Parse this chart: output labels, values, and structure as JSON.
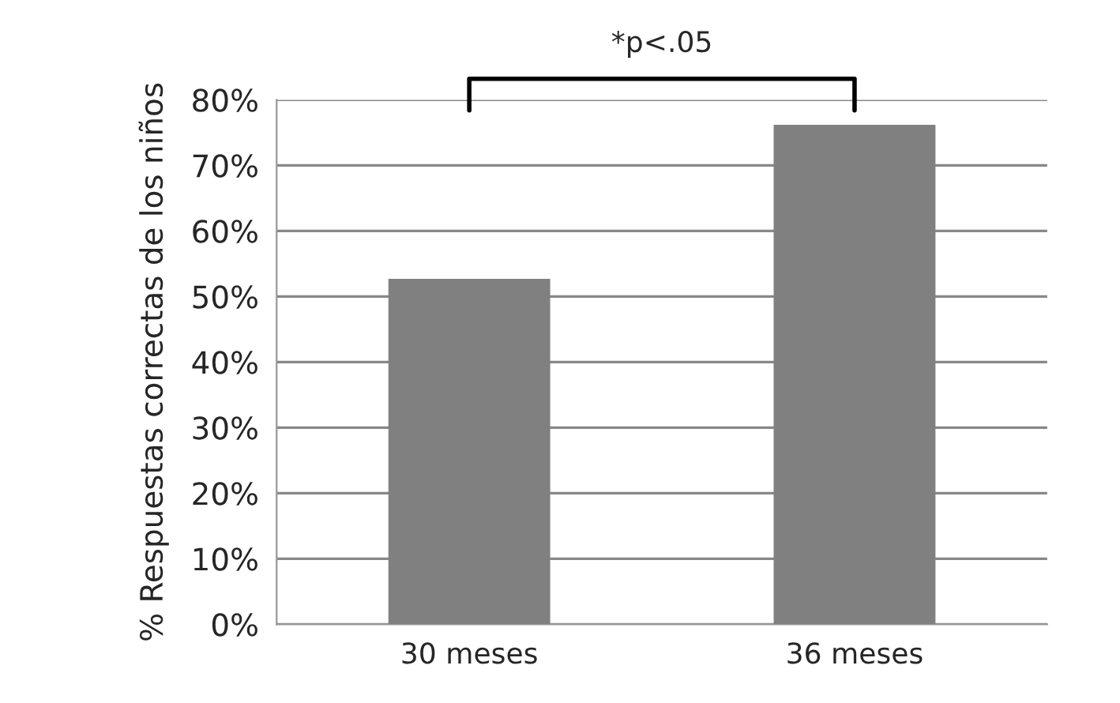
{
  "chart_data": {
    "type": "bar",
    "ylabel": "% Respuestas correctas de los niños",
    "categories": [
      "30 meses",
      "36 meses"
    ],
    "values": [
      52.7,
      76.2
    ],
    "color": "#808080",
    "ylim": [
      0,
      80
    ],
    "yticks": [
      {
        "value": 0,
        "label": "0%"
      },
      {
        "value": 10,
        "label": "10%"
      },
      {
        "value": 20,
        "label": "20%"
      },
      {
        "value": 30,
        "label": "30%"
      },
      {
        "value": 40,
        "label": "40%"
      },
      {
        "value": 50,
        "label": "50%"
      },
      {
        "value": 60,
        "label": "60%"
      },
      {
        "value": 70,
        "label": "70%"
      },
      {
        "value": 80,
        "label": "80%"
      }
    ],
    "grid": "y",
    "legend": false,
    "annotations": [
      "*p<.05"
    ]
  }
}
